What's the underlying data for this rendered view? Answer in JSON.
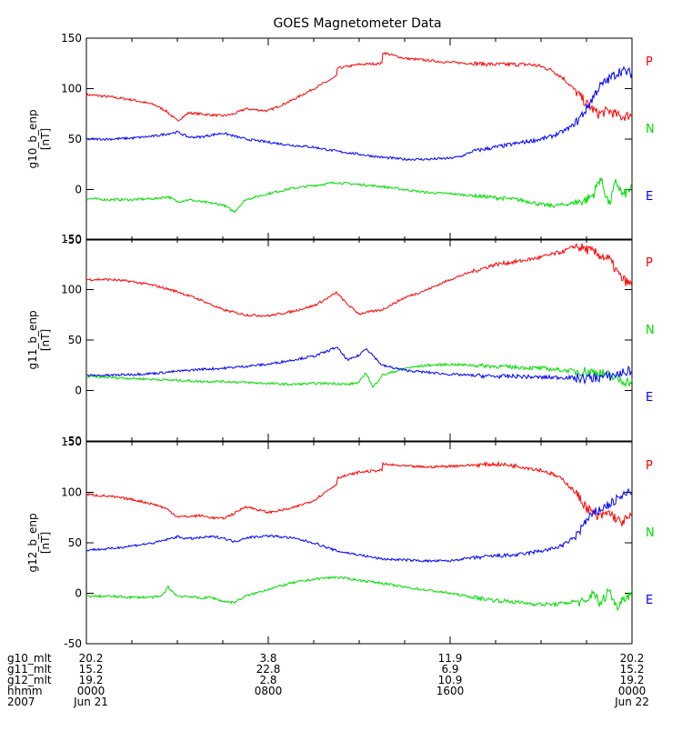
{
  "title": "GOES Magnetometer Data",
  "colors": {
    "P": "#ff0000",
    "N": "#00dd00",
    "E": "#0000ff",
    "axis": "#000000"
  },
  "legend": [
    "P",
    "N",
    "E"
  ],
  "yticks": [
    "150",
    "100",
    "50",
    "0",
    "-50"
  ],
  "footer": {
    "rows": [
      {
        "label": "g10_mlt",
        "values": [
          "20.2",
          "3.8",
          "11.9",
          "20.2"
        ]
      },
      {
        "label": "g11_mlt",
        "values": [
          "15.2",
          "22.8",
          "6.9",
          "15.2"
        ]
      },
      {
        "label": "g12_mlt",
        "values": [
          "19.2",
          "2.8",
          "10.9",
          "19.2"
        ]
      },
      {
        "label": "hhmm",
        "values": [
          "0000",
          "0800",
          "1600",
          "0000"
        ]
      },
      {
        "label": "2007",
        "values": [
          "Jun 21",
          "",
          "",
          "Jun 22"
        ]
      }
    ]
  },
  "chart_data": [
    {
      "type": "line",
      "ylabel": "g10_b_enp",
      "yunit": "[nT]",
      "xlim": [
        0,
        24
      ],
      "ylim": [
        -50,
        150
      ],
      "series": [
        {
          "name": "P",
          "x": [
            0,
            1,
            2,
            3,
            3.5,
            4,
            4.5,
            5,
            5.5,
            6,
            6.5,
            7,
            8,
            9,
            10,
            10.5,
            11,
            11,
            12,
            13,
            13,
            14,
            15,
            16,
            17,
            18,
            19,
            19.5,
            20,
            20.5,
            21,
            21.5,
            22,
            22.5,
            23,
            23.5,
            24
          ],
          "y": [
            94,
            92,
            89,
            84,
            78,
            68,
            76,
            75,
            74,
            73,
            75,
            80,
            78,
            88,
            100,
            106,
            112,
            120,
            124,
            125,
            136,
            130,
            128,
            126,
            125,
            124,
            124,
            124,
            122,
            118,
            110,
            98,
            85,
            75,
            78,
            72,
            74
          ]
        },
        {
          "name": "N",
          "x": [
            0,
            1,
            2,
            3,
            3.3,
            3.6,
            4,
            4.5,
            5,
            6,
            6.5,
            7,
            8,
            9,
            10,
            11,
            11.5,
            12,
            13,
            14,
            15,
            16,
            17,
            18,
            19,
            19.5,
            20,
            20.5,
            21,
            21.5,
            22,
            22.3,
            22.6,
            23,
            23.3,
            23.6,
            24
          ],
          "y": [
            -9,
            -10,
            -10,
            -9,
            -8,
            -7,
            -12,
            -10,
            -12,
            -15,
            -22,
            -10,
            -4,
            1,
            4,
            7,
            6,
            5,
            3,
            0,
            -3,
            -4,
            -6,
            -8,
            -10,
            -12,
            -15,
            -16,
            -15,
            -13,
            -10,
            -5,
            12,
            -15,
            8,
            -6,
            2
          ]
        },
        {
          "name": "E",
          "x": [
            0,
            1,
            2,
            3,
            3.5,
            4,
            4.5,
            5,
            5.5,
            6,
            6.5,
            7,
            8,
            9,
            10,
            11,
            12,
            13,
            14,
            15,
            16,
            16.5,
            17,
            18,
            19,
            19.5,
            20,
            20.5,
            21,
            21.5,
            22,
            22.5,
            23,
            23.5,
            24
          ],
          "y": [
            50,
            50,
            51,
            53,
            55,
            57,
            52,
            52,
            54,
            56,
            53,
            50,
            47,
            44,
            42,
            38,
            35,
            32,
            30,
            30,
            31,
            33,
            38,
            42,
            46,
            48,
            50,
            53,
            58,
            65,
            80,
            100,
            110,
            118,
            115
          ]
        }
      ]
    },
    {
      "type": "line",
      "ylabel": "g11_b_enp",
      "yunit": "[nT]",
      "xlim": [
        0,
        24
      ],
      "ylim": [
        -50,
        150
      ],
      "series": [
        {
          "name": "P",
          "x": [
            0,
            1,
            2,
            3,
            4,
            5,
            5.5,
            6,
            7,
            8,
            9,
            10,
            10.5,
            11,
            11.5,
            12,
            12.5,
            13,
            14,
            15,
            16,
            17,
            18,
            19,
            20,
            21,
            21.5,
            22,
            22.5,
            23,
            23.5,
            24
          ],
          "y": [
            110,
            110,
            108,
            104,
            98,
            90,
            85,
            80,
            75,
            74,
            78,
            84,
            90,
            97,
            85,
            76,
            78,
            80,
            92,
            100,
            110,
            118,
            125,
            128,
            132,
            138,
            143,
            140,
            135,
            130,
            112,
            104
          ]
        },
        {
          "name": "N",
          "x": [
            0,
            1,
            2,
            3,
            4,
            5,
            6,
            7,
            8,
            9,
            10,
            11,
            11.5,
            12,
            12.3,
            12.6,
            13,
            14,
            15,
            16,
            17,
            18,
            19,
            20,
            21,
            22,
            22.5,
            23,
            23.5,
            24
          ],
          "y": [
            14,
            13,
            12,
            11,
            10,
            9,
            9,
            8,
            7,
            6,
            7,
            7,
            6,
            8,
            18,
            3,
            15,
            22,
            25,
            26,
            25,
            24,
            23,
            22,
            20,
            19,
            18,
            15,
            10,
            8
          ]
        },
        {
          "name": "E",
          "x": [
            0,
            1,
            2,
            3,
            4,
            5,
            6,
            7,
            8,
            9,
            10,
            10.5,
            11,
            11.5,
            12,
            12.3,
            12.6,
            13,
            14,
            15,
            16,
            17,
            18,
            19,
            20,
            21,
            22,
            22.5,
            23,
            23.5,
            24
          ],
          "y": [
            15,
            15,
            16,
            17,
            19,
            21,
            22,
            24,
            26,
            30,
            34,
            38,
            43,
            30,
            35,
            42,
            35,
            25,
            20,
            18,
            16,
            15,
            14,
            14,
            13,
            13,
            12,
            13,
            14,
            17,
            20
          ]
        }
      ]
    },
    {
      "type": "line",
      "ylabel": "g12_b_enp",
      "yunit": "[nT]",
      "xlim": [
        0,
        24
      ],
      "ylim": [
        -50,
        150
      ],
      "series": [
        {
          "name": "P",
          "x": [
            0,
            1,
            2,
            3,
            3.5,
            4,
            4.5,
            5,
            5.5,
            6,
            6.5,
            7,
            8,
            9,
            10,
            10.5,
            11,
            11,
            12,
            13,
            13,
            14,
            15,
            16,
            17,
            18,
            19,
            19.5,
            20,
            20.5,
            21,
            21.5,
            22,
            22.5,
            23,
            23.5,
            24
          ],
          "y": [
            98,
            96,
            93,
            88,
            84,
            76,
            76,
            77,
            75,
            74,
            79,
            86,
            80,
            84,
            92,
            100,
            108,
            114,
            120,
            122,
            128,
            126,
            125,
            126,
            127,
            128,
            126,
            124,
            122,
            118,
            112,
            100,
            85,
            75,
            80,
            70,
            76
          ]
        },
        {
          "name": "N",
          "x": [
            0,
            1,
            2,
            3,
            3.3,
            3.6,
            4,
            4.5,
            5,
            5.5,
            6,
            6.5,
            7,
            8,
            9,
            10,
            11,
            12,
            13,
            14,
            15,
            16,
            17,
            18,
            19,
            19.5,
            20,
            20.5,
            21,
            21.5,
            22,
            22.3,
            22.6,
            23,
            23.3,
            23.6,
            24
          ],
          "y": [
            -3,
            -3,
            -4,
            -4,
            -3,
            6,
            -3,
            -3,
            -5,
            -4,
            -8,
            -9,
            -3,
            4,
            10,
            14,
            16,
            13,
            10,
            6,
            3,
            0,
            -4,
            -7,
            -9,
            -10,
            -11,
            -11,
            -10,
            -8,
            -10,
            3,
            -12,
            4,
            -14,
            -5,
            0
          ]
        },
        {
          "name": "E",
          "x": [
            0,
            1,
            2,
            3,
            3.5,
            4,
            4.5,
            5,
            5.5,
            6,
            6.5,
            7,
            8,
            9,
            10,
            11,
            12,
            13,
            14,
            15,
            16,
            16.5,
            17,
            18,
            19,
            19.5,
            20,
            20.5,
            21,
            21.5,
            22,
            22.5,
            23,
            23.5,
            24
          ],
          "y": [
            43,
            44,
            47,
            50,
            53,
            56,
            54,
            55,
            56,
            55,
            51,
            55,
            57,
            55,
            50,
            42,
            38,
            34,
            33,
            32,
            32,
            34,
            35,
            37,
            38,
            40,
            42,
            44,
            48,
            56,
            72,
            82,
            88,
            95,
            102
          ]
        }
      ]
    }
  ]
}
